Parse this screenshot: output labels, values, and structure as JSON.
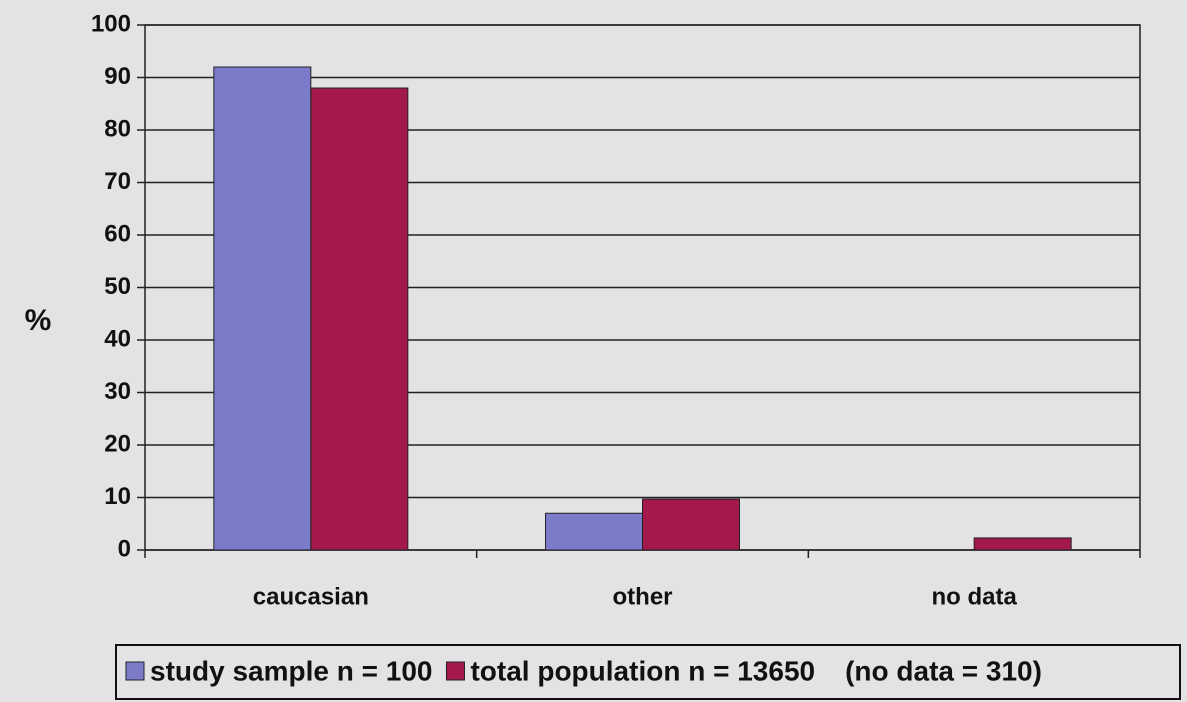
{
  "chart_data": {
    "type": "bar",
    "y_label": "%",
    "categories": [
      "caucasian",
      "other",
      "no data"
    ],
    "series": [
      {
        "name": "study sample n = 100",
        "color": "#7b7bc9",
        "values": [
          92,
          7,
          0
        ]
      },
      {
        "name": "total population n = 13650",
        "color": "#a3194b",
        "values": [
          88,
          9.7,
          2.3
        ]
      }
    ],
    "annotation": "(no data = 310)",
    "ylim": [
      0,
      100
    ],
    "yticks": [
      0,
      10,
      20,
      30,
      40,
      50,
      60,
      70,
      80,
      90,
      100
    ],
    "grid": true
  }
}
